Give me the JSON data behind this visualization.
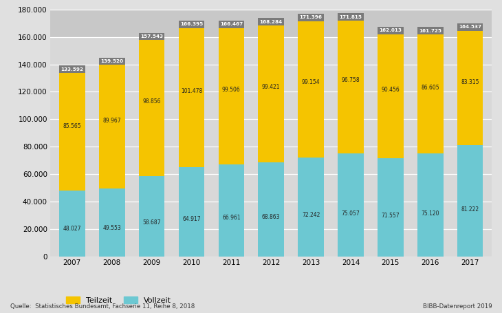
{
  "years": [
    2007,
    2008,
    2009,
    2010,
    2011,
    2012,
    2013,
    2014,
    2015,
    2016,
    2017
  ],
  "vollzeit": [
    48027,
    49553,
    58687,
    64917,
    66961,
    68863,
    72242,
    75057,
    71557,
    75120,
    81222
  ],
  "teilzeit": [
    85565,
    89967,
    98856,
    101478,
    99506,
    99421,
    99154,
    96758,
    90456,
    86605,
    83315
  ],
  "totals": [
    133592,
    139520,
    157543,
    166395,
    166467,
    168284,
    171396,
    171815,
    162013,
    161725,
    164537
  ],
  "vollzeit_labels": [
    "48.027",
    "49.553",
    "58.687",
    "64.917",
    "66.961",
    "68.863",
    "72.242",
    "75.057",
    "71.557",
    "75.120",
    "81.222"
  ],
  "teilzeit_labels": [
    "85.565",
    "89.967",
    "98.856",
    "101.478",
    "99.506",
    "99.421",
    "99.154",
    "96.758",
    "90.456",
    "86.605",
    "83.315"
  ],
  "total_labels": [
    "133.592",
    "139.520",
    "157.543",
    "166.395",
    "166.467",
    "168.284",
    "171.396",
    "171.815",
    "162.013",
    "161.725",
    "164.537"
  ],
  "color_vollzeit": "#6cc8d2",
  "color_teilzeit": "#f5c400",
  "color_total_box": "#7a7a7a",
  "color_total_text": "#ffffff",
  "background_color": "#e0e0e0",
  "plot_background": "#d8d8d8",
  "top_band_color": "#c8c8c8",
  "ylabel_max": 180000,
  "yticks": [
    0,
    20000,
    40000,
    60000,
    80000,
    100000,
    120000,
    140000,
    160000,
    180000
  ],
  "ytick_labels": [
    "0",
    "20.000",
    "40.000",
    "60.000",
    "80.000",
    "100.000",
    "120.000",
    "140.000",
    "160.000",
    "180.000"
  ],
  "legend_teilzeit": "Teilzeit",
  "legend_vollzeit": "Vollzeit",
  "source_text": "Quelle:  Statistisches Bundesamt, Fachserie 11, Reihe 8, 2018",
  "right_text": "BIBB-Datenreport 2019",
  "bar_width": 0.65
}
